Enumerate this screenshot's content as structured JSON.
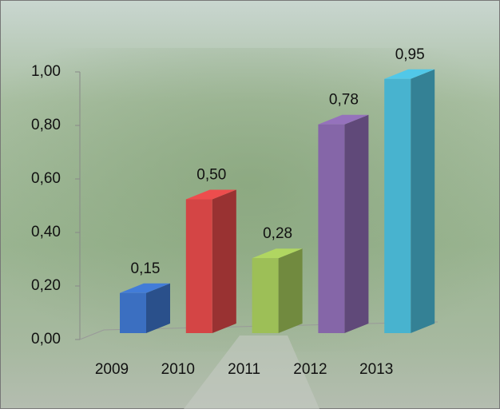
{
  "chart_data": {
    "type": "bar3d",
    "categories": [
      "2009",
      "2010",
      "2011",
      "2012",
      "2013"
    ],
    "values": [
      0.15,
      0.5,
      0.28,
      0.78,
      0.95
    ],
    "value_labels": [
      "0,15",
      "0,50",
      "0,28",
      "0,78",
      "0,95"
    ],
    "colors": [
      "#3b6fc1",
      "#d44545",
      "#9dbf57",
      "#8566a8",
      "#48b3cf"
    ],
    "ylim": [
      0,
      1
    ],
    "yticks": [
      {
        "value": 0,
        "label": "0,00"
      },
      {
        "value": 0.2,
        "label": "0,20"
      },
      {
        "value": 0.4,
        "label": "0,40"
      },
      {
        "value": 0.6,
        "label": "0,60"
      },
      {
        "value": 0.8,
        "label": "0,80"
      },
      {
        "value": 1,
        "label": "1,00"
      }
    ]
  }
}
